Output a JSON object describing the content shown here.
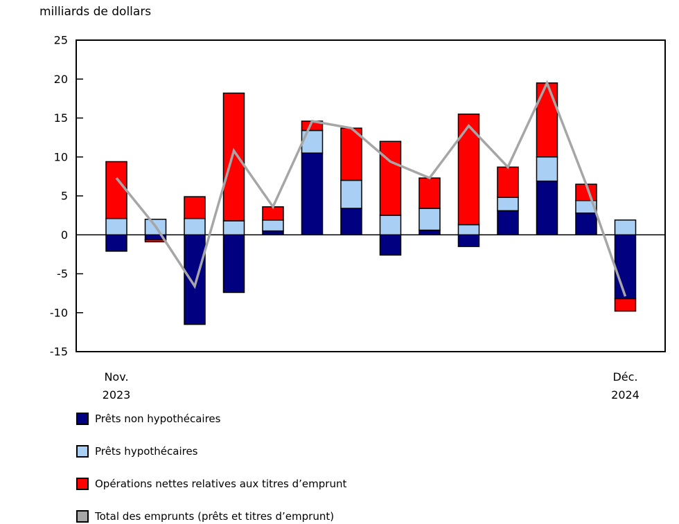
{
  "chart_data": {
    "type": "bar",
    "stacked": true,
    "title": "milliards de dollars",
    "ylabel": "milliards de dollars",
    "xlabel": "",
    "ylim": [
      -15,
      25
    ],
    "yticks": [
      25,
      20,
      15,
      10,
      5,
      0,
      -5,
      -10,
      -15
    ],
    "grid": false,
    "legend_position": "bottom-left",
    "x_axis": {
      "first": {
        "lines": [
          "Nov.",
          "2023"
        ]
      },
      "last": {
        "lines": [
          "Déc.",
          "2024"
        ]
      }
    },
    "categories": [
      "Nov. 2023",
      "",
      "",
      "",
      "",
      "",
      "",
      "",
      "",
      "",
      "",
      "",
      "",
      "Déc. 2024"
    ],
    "series": [
      {
        "name": "Prêts non hypothécaires",
        "type": "bar",
        "color": "#000080",
        "values": [
          -2.1,
          -0.6,
          -11.5,
          -7.4,
          0.5,
          10.5,
          3.4,
          -2.6,
          0.6,
          -1.5,
          3.1,
          6.9,
          2.8,
          -8.2
        ]
      },
      {
        "name": "Prêts hypothécaires",
        "type": "bar",
        "color": "#A9CFF4",
        "values": [
          2.1,
          2.0,
          2.1,
          1.8,
          1.4,
          2.9,
          3.6,
          2.5,
          2.8,
          1.3,
          1.7,
          3.1,
          1.6,
          1.9
        ]
      },
      {
        "name": "Opérations nettes relatives aux titres d’emprunt",
        "type": "bar",
        "color": "#FF0000",
        "values": [
          7.3,
          -0.3,
          2.8,
          16.4,
          1.7,
          1.2,
          6.7,
          9.5,
          3.9,
          14.2,
          3.9,
          9.5,
          2.1,
          -1.6
        ]
      },
      {
        "name": "Total des emprunts (prêts et titres d’emprunt)",
        "type": "line",
        "color": "#A6A6A6",
        "values": [
          7.3,
          1.1,
          -6.6,
          10.8,
          3.6,
          14.6,
          13.7,
          9.4,
          7.3,
          14.0,
          8.7,
          19.5,
          6.5,
          -7.9
        ]
      }
    ]
  }
}
